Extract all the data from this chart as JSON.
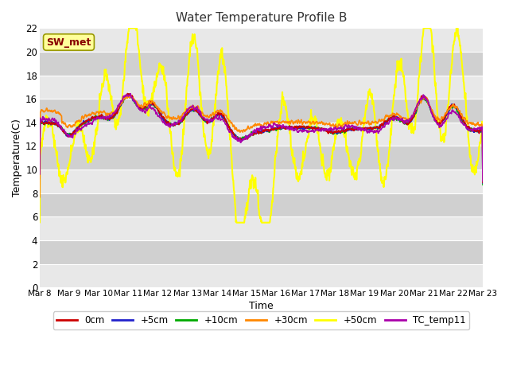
{
  "title": "Water Temperature Profile B",
  "xlabel": "Time",
  "ylabel": "Temperature(C)",
  "ylim": [
    0,
    22
  ],
  "yticks": [
    0,
    2,
    4,
    6,
    8,
    10,
    12,
    14,
    16,
    18,
    20,
    22
  ],
  "colors": {
    "0cm": "#cc0000",
    "+5cm": "#2222cc",
    "+10cm": "#00aa00",
    "+30cm": "#ff8800",
    "+50cm": "#ffff00",
    "TC_temp11": "#aa00aa"
  },
  "annotation_text": "SW_met",
  "annotation_color": "#880000",
  "annotation_bg": "#ffff99",
  "band_light": "#e8e8e8",
  "band_dark": "#d0d0d0",
  "grid_color": "#ffffff"
}
